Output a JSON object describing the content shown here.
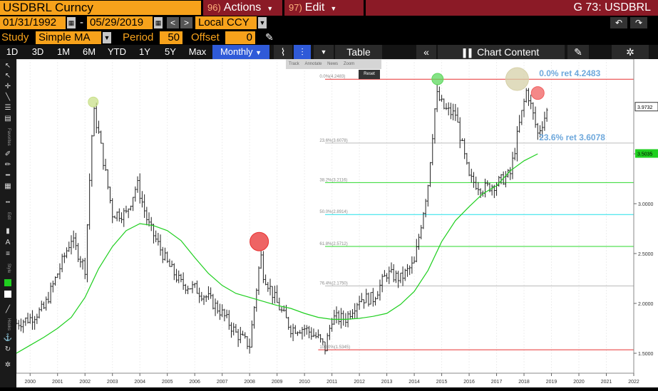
{
  "header": {
    "ticker": "USDBRL Curncy",
    "actions_num": "96)",
    "actions_label": "Actions",
    "edit_num": "97)",
    "edit_label": "Edit",
    "page_code": "G 73: USDBRL"
  },
  "dates": {
    "start": "01/31/1992",
    "separator": "-",
    "end": "05/29/2019",
    "currency": "Local CCY"
  },
  "study": {
    "study_label": "Study",
    "study_value": "Simple MA",
    "period_label": "Period",
    "period_value": "50",
    "offset_label": "Offset",
    "offset_value": "0"
  },
  "timeframes": [
    "1D",
    "3D",
    "1M",
    "6M",
    "YTD",
    "1Y",
    "5Y",
    "Max"
  ],
  "frequency": "Monthly",
  "toolbar_labels": {
    "table": "Table",
    "chart_content": "Chart Content"
  },
  "mini_toolbar": [
    "Track",
    "Annotate",
    "News",
    "Zoom",
    "Reset"
  ],
  "side_labels": [
    "Favorites",
    "Edit",
    "Style",
    "Hooks"
  ],
  "colors": {
    "accent_orange": "#f7a21b",
    "header_red": "#8b1a26",
    "active_blue": "#2f5ad8",
    "ma_green": "#1fcf1f",
    "fib_red": "#e83030",
    "fib_green": "#2bd82b",
    "fib_cyan": "#22e0e8",
    "fib_gray": "#bbbbbb",
    "annot_blue": "#6ea8dc"
  },
  "chart_data": {
    "type": "line",
    "series": [
      {
        "name": "Simple MA 50",
        "x": [
          2000.0,
          2000.5,
          2001.0,
          2001.5,
          2002.0,
          2002.5,
          2003.0,
          2003.5,
          2004.0,
          2004.5,
          2005.0,
          2005.5,
          2006.0,
          2006.5,
          2007.0,
          2007.5,
          2008.0,
          2008.5,
          2009.0,
          2009.5,
          2010.0,
          2010.5,
          2011.0,
          2011.5,
          2012.0,
          2012.5,
          2013.0,
          2013.5,
          2014.0,
          2014.5,
          2015.0,
          2015.5,
          2016.0,
          2016.5,
          2017.0,
          2017.5,
          2018.0,
          2018.5,
          2019.0
        ],
        "y": [
          1.5,
          1.58,
          1.66,
          1.75,
          1.86,
          2.06,
          2.35,
          2.57,
          2.73,
          2.8,
          2.78,
          2.73,
          2.63,
          2.46,
          2.3,
          2.18,
          2.1,
          2.06,
          2.02,
          1.98,
          1.95,
          1.9,
          1.86,
          1.84,
          1.84,
          1.85,
          1.87,
          1.9,
          1.99,
          2.12,
          2.33,
          2.62,
          2.83,
          2.97,
          3.1,
          3.18,
          3.33,
          3.43,
          3.5
        ]
      },
      {
        "name": "USDBRL",
        "x": [
          2000.0,
          2000.5,
          2001.0,
          2001.5,
          2002.0,
          2002.5,
          2002.8,
          2003.0,
          2003.5,
          2004.0,
          2004.4,
          2004.8,
          2005.5,
          2006.0,
          2006.5,
          2007.0,
          2007.5,
          2008.0,
          2008.5,
          2008.9,
          2009.0,
          2009.5,
          2010.0,
          2010.5,
          2011.0,
          2011.25,
          2011.5,
          2012.0,
          2012.5,
          2013.0,
          2013.5,
          2014.0,
          2014.5,
          2015.0,
          2015.3,
          2015.6,
          2015.9,
          2016.0,
          2016.5,
          2017.0,
          2017.5,
          2018.0,
          2018.3,
          2018.6,
          2019.0,
          2019.4
        ],
        "y": [
          1.8,
          1.85,
          1.95,
          2.3,
          2.65,
          2.35,
          3.95,
          3.7,
          2.9,
          2.9,
          3.2,
          2.8,
          2.4,
          2.2,
          2.15,
          2.05,
          1.9,
          1.7,
          1.58,
          2.5,
          2.3,
          2.0,
          1.75,
          1.75,
          1.65,
          1.55,
          1.85,
          1.85,
          2.05,
          2.05,
          2.3,
          2.25,
          2.4,
          3.2,
          4.1,
          3.95,
          3.9,
          3.9,
          3.25,
          3.15,
          3.2,
          3.3,
          3.75,
          4.15,
          3.7,
          3.97
        ]
      }
    ],
    "xlim": [
      2000,
      2022.5
    ],
    "ylim": [
      1.3,
      4.45
    ],
    "x_ticks": [
      "2000",
      "2001",
      "2002",
      "2003",
      "2004",
      "2005",
      "2006",
      "2007",
      "2008",
      "2009",
      "2010",
      "2011",
      "2012",
      "2013",
      "2014",
      "2015",
      "2016",
      "2017",
      "2018",
      "2019",
      "2020",
      "2021",
      "2022"
    ],
    "y_ticks": [
      "1.5000",
      "2.0000",
      "2.5000",
      "3.0000",
      "3.5000"
    ],
    "last_price_label": "3.9732",
    "last_price": 3.9732,
    "ma_last_label": "3.5035",
    "ma_last": 3.5035,
    "fib_levels": [
      {
        "label": "0.0%(4.2483)",
        "value": 4.2483,
        "color": "#e83030"
      },
      {
        "label": "23.6%(3.6078)",
        "value": 3.6078,
        "color": "#bbbbbb"
      },
      {
        "label": "38.2%(3.2116)",
        "value": 3.2116,
        "color": "#2bd82b"
      },
      {
        "label": "50.0%(2.8914)",
        "value": 2.8914,
        "color": "#22e0e8"
      },
      {
        "label": "61.8%(2.5712)",
        "value": 2.5712,
        "color": "#2bd82b"
      },
      {
        "label": "76.4%(2.1750)",
        "value": 2.175,
        "color": "#bbbbbb"
      },
      {
        "label": "100.0%(1.5345)",
        "value": 1.5345,
        "color": "#e83030"
      }
    ],
    "annotations": [
      {
        "text": "0.0% ret 4.2483",
        "value": 4.2483
      },
      {
        "text": "23.6% ret 3.6078",
        "value": 3.6078
      }
    ],
    "markers": [
      {
        "x": 2002.8,
        "y": 4.02,
        "color": "#c9e08a",
        "r": 7
      },
      {
        "x": 2008.85,
        "y": 2.62,
        "color": "#e83030",
        "r": 13
      },
      {
        "x": 2015.35,
        "y": 4.25,
        "color": "#5ed85e",
        "r": 8
      },
      {
        "x": 2018.25,
        "y": 4.25,
        "color": "#d6d0a8",
        "r": 16
      },
      {
        "x": 2019.0,
        "y": 4.11,
        "color": "#f06060",
        "r": 9
      }
    ]
  }
}
